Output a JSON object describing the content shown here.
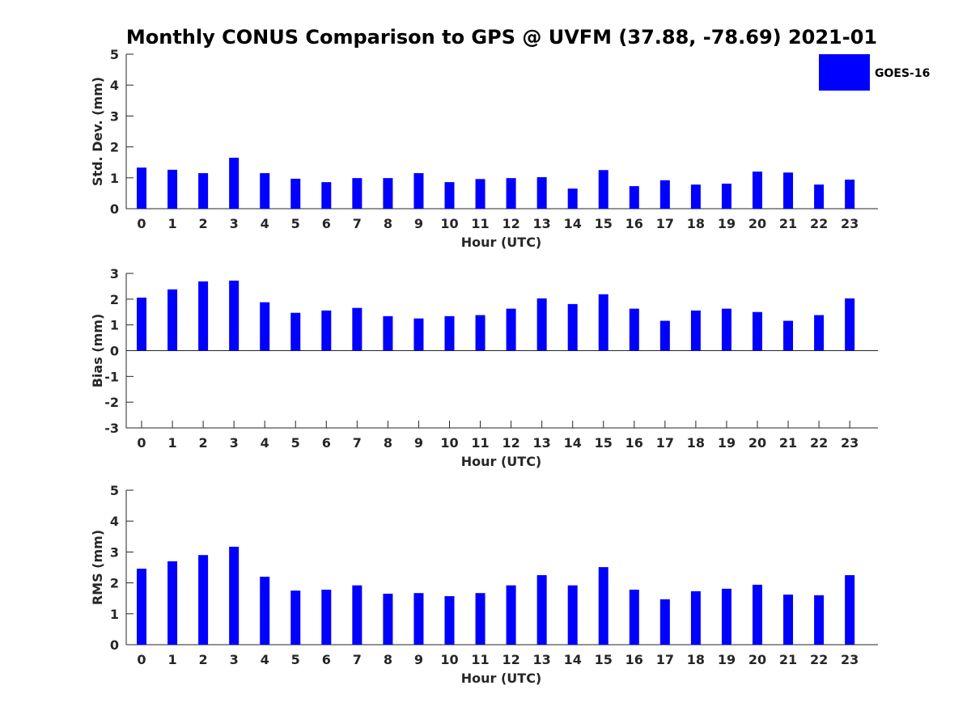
{
  "title": "Monthly CONUS Comparison to GPS @ UVFM (37.88, -78.69) 2021-01",
  "legend": {
    "label": "GOES-16",
    "color": "#0000ff"
  },
  "chart_data": [
    {
      "type": "bar",
      "title": "Monthly CONUS Comparison to GPS @ UVFM (37.88, -78.69) 2021-01",
      "xlabel": "Hour (UTC)",
      "ylabel": "Std. Dev. (mm)",
      "ylim": [
        0,
        5
      ],
      "yticks": [
        "0",
        "1",
        "2",
        "3",
        "4",
        "5"
      ],
      "categories": [
        "0",
        "1",
        "2",
        "3",
        "4",
        "5",
        "6",
        "7",
        "8",
        "9",
        "10",
        "11",
        "12",
        "13",
        "14",
        "15",
        "16",
        "17",
        "18",
        "19",
        "20",
        "21",
        "22",
        "23"
      ],
      "series": [
        {
          "name": "GOES-16",
          "color": "#0000ff",
          "values": [
            1.33,
            1.26,
            1.15,
            1.65,
            1.15,
            0.97,
            0.86,
            0.99,
            0.99,
            1.15,
            0.86,
            0.96,
            0.99,
            1.02,
            0.65,
            1.25,
            0.73,
            0.92,
            0.78,
            0.81,
            1.2,
            1.17,
            0.78,
            0.94
          ]
        }
      ]
    },
    {
      "type": "bar",
      "xlabel": "Hour (UTC)",
      "ylabel": "Bias (mm)",
      "ylim": [
        -3,
        3
      ],
      "yticks": [
        "-3",
        "-2",
        "-1",
        "0",
        "1",
        "2",
        "3"
      ],
      "categories": [
        "0",
        "1",
        "2",
        "3",
        "4",
        "5",
        "6",
        "7",
        "8",
        "9",
        "10",
        "11",
        "12",
        "13",
        "14",
        "15",
        "16",
        "17",
        "18",
        "19",
        "20",
        "21",
        "22",
        "23"
      ],
      "series": [
        {
          "name": "GOES-16",
          "color": "#0000ff",
          "values": [
            2.06,
            2.38,
            2.69,
            2.72,
            1.88,
            1.47,
            1.56,
            1.66,
            1.34,
            1.25,
            1.34,
            1.38,
            1.63,
            2.03,
            1.81,
            2.19,
            1.63,
            1.16,
            1.56,
            1.63,
            1.5,
            1.16,
            1.38,
            2.03
          ]
        }
      ]
    },
    {
      "type": "bar",
      "xlabel": "Hour (UTC)",
      "ylabel": "RMS (mm)",
      "ylim": [
        0,
        5
      ],
      "yticks": [
        "0",
        "1",
        "2",
        "3",
        "4",
        "5"
      ],
      "categories": [
        "0",
        "1",
        "2",
        "3",
        "4",
        "5",
        "6",
        "7",
        "8",
        "9",
        "10",
        "11",
        "12",
        "13",
        "14",
        "15",
        "16",
        "17",
        "18",
        "19",
        "20",
        "21",
        "22",
        "23"
      ],
      "series": [
        {
          "name": "GOES-16",
          "color": "#0000ff",
          "values": [
            2.46,
            2.7,
            2.9,
            3.17,
            2.2,
            1.75,
            1.78,
            1.92,
            1.65,
            1.67,
            1.57,
            1.67,
            1.92,
            2.25,
            1.92,
            2.51,
            1.78,
            1.47,
            1.73,
            1.81,
            1.94,
            1.62,
            1.6,
            2.25
          ]
        }
      ]
    }
  ]
}
